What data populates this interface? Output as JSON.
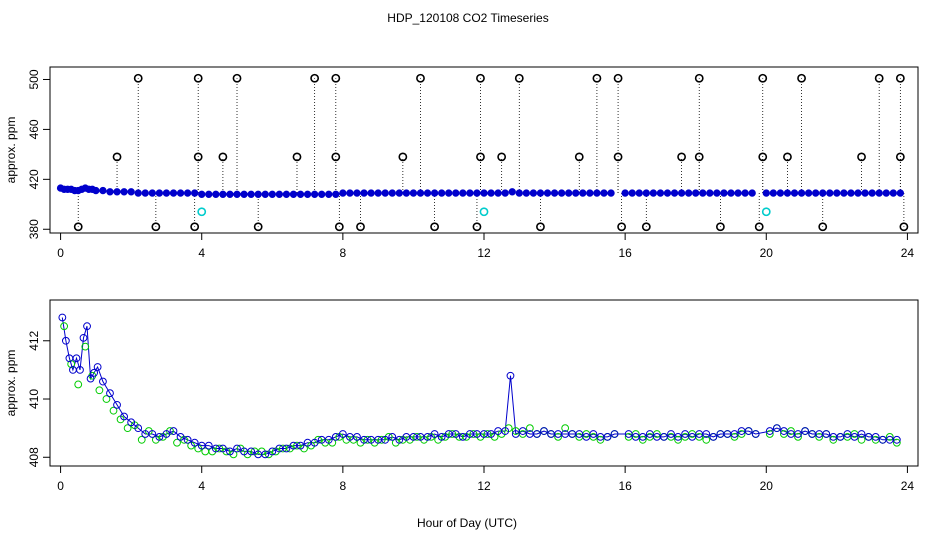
{
  "title": "HDP_120108  CO2 Timeseries",
  "xlabel": "Hour of Day (UTC)",
  "colors": {
    "primary": "#0000cc",
    "secondary": "#00cc00",
    "flag": "#00cccc",
    "outlier": "#000000"
  },
  "chart_data": [
    {
      "type": "scatter",
      "title": "HDP_120108  CO2 Timeseries",
      "xlabel": "",
      "ylabel": "approx. ppm",
      "xlim": [
        -0.3,
        24.3
      ],
      "ylim": [
        377,
        510
      ],
      "xticks": [
        0,
        4,
        8,
        12,
        16,
        20,
        24
      ],
      "yticks": [
        380,
        420,
        460,
        500
      ],
      "series": [
        {
          "marker": "circle-filled",
          "color": "#0000cc",
          "x": [
            0.0,
            0.1,
            0.2,
            0.3,
            0.4,
            0.5,
            0.6,
            0.7,
            0.8,
            0.9,
            1.0,
            1.2,
            1.4,
            1.6,
            1.8,
            2.0,
            2.2,
            2.4,
            2.6,
            2.8,
            3.0,
            3.2,
            3.4,
            3.6,
            3.8,
            4.0,
            4.2,
            4.4,
            4.6,
            4.8,
            5.0,
            5.2,
            5.4,
            5.6,
            5.8,
            6.0,
            6.2,
            6.4,
            6.6,
            6.8,
            7.0,
            7.2,
            7.4,
            7.6,
            7.8,
            8.0,
            8.2,
            8.4,
            8.6,
            8.8,
            9.0,
            9.2,
            9.4,
            9.6,
            9.8,
            10.0,
            10.2,
            10.4,
            10.6,
            10.8,
            11.0,
            11.2,
            11.4,
            11.6,
            11.8,
            12.0,
            12.2,
            12.4,
            12.6,
            12.8,
            13.0,
            13.2,
            13.4,
            13.6,
            13.8,
            14.0,
            14.2,
            14.4,
            14.6,
            14.8,
            15.0,
            15.2,
            15.4,
            15.6,
            16.0,
            16.2,
            16.4,
            16.6,
            16.8,
            17.0,
            17.2,
            17.4,
            17.6,
            17.8,
            18.0,
            18.2,
            18.4,
            18.6,
            18.8,
            19.0,
            19.2,
            19.4,
            19.6,
            20.0,
            20.2,
            20.4,
            20.6,
            20.8,
            21.0,
            21.2,
            21.4,
            21.6,
            21.8,
            22.0,
            22.2,
            22.4,
            22.6,
            22.8,
            23.0,
            23.2,
            23.4,
            23.6,
            23.8
          ],
          "y": [
            413,
            412,
            412,
            412,
            411,
            411,
            412,
            413,
            412,
            412,
            411,
            411,
            410,
            410,
            410,
            410,
            409,
            409,
            409,
            409,
            409,
            409,
            409,
            409,
            409,
            408,
            408,
            408,
            408,
            408,
            408,
            408,
            408,
            408,
            408,
            408,
            408,
            408,
            408,
            408,
            408,
            408,
            408,
            408,
            408,
            409,
            409,
            409,
            409,
            409,
            409,
            409,
            409,
            409,
            409,
            409,
            409,
            409,
            409,
            409,
            409,
            409,
            409,
            409,
            409,
            409,
            409,
            409,
            409,
            410,
            409,
            409,
            409,
            409,
            409,
            409,
            409,
            409,
            409,
            409,
            409,
            409,
            409,
            409,
            409,
            409,
            409,
            409,
            409,
            409,
            409,
            409,
            409,
            409,
            409,
            409,
            409,
            409,
            409,
            409,
            409,
            409,
            409,
            409,
            409,
            409,
            409,
            409,
            409,
            409,
            409,
            409,
            409,
            409,
            409,
            409,
            409,
            409,
            409,
            409,
            409,
            409,
            409
          ]
        },
        {
          "marker": "circle-open",
          "color": "#000000",
          "x": [
            2.2,
            3.9,
            5.0,
            7.2,
            7.8,
            10.2,
            11.9,
            13.0,
            15.2,
            15.8,
            18.1,
            19.9,
            21.0,
            23.2,
            23.8
          ],
          "y": [
            501,
            501,
            501,
            501,
            501,
            501,
            501,
            501,
            501,
            501,
            501,
            501,
            501,
            501,
            501
          ]
        },
        {
          "marker": "circle-open",
          "color": "#000000",
          "x": [
            1.6,
            3.9,
            4.6,
            6.7,
            7.8,
            9.7,
            11.9,
            12.5,
            14.7,
            15.8,
            17.6,
            18.1,
            19.9,
            20.6,
            22.7,
            23.8
          ],
          "y": [
            438,
            438,
            438,
            438,
            438,
            438,
            438,
            438,
            438,
            438,
            438,
            438,
            438,
            438,
            438,
            438
          ]
        },
        {
          "marker": "circle-open",
          "color": "#000000",
          "x": [
            0.5,
            2.7,
            3.8,
            5.6,
            7.9,
            8.5,
            10.6,
            11.8,
            13.6,
            15.9,
            16.6,
            18.7,
            19.8,
            21.6,
            23.9
          ],
          "y": [
            382,
            382,
            382,
            382,
            382,
            382,
            382,
            382,
            382,
            382,
            382,
            382,
            382,
            382,
            382
          ]
        },
        {
          "marker": "circle-open",
          "color": "#00cccc",
          "x": [
            4.0,
            12.0,
            20.0
          ],
          "y": [
            394,
            394,
            394
          ]
        }
      ]
    },
    {
      "type": "scatter",
      "xlabel": "Hour of Day (UTC)",
      "ylabel": "approx. ppm",
      "xlim": [
        -0.3,
        24.3
      ],
      "ylim": [
        407.7,
        413.4
      ],
      "xticks": [
        0,
        4,
        8,
        12,
        16,
        20,
        24
      ],
      "yticks": [
        408,
        410,
        412
      ],
      "series": [
        {
          "marker": "circle-open",
          "color": "#0000cc",
          "x": [
            0.05,
            0.15,
            0.25,
            0.35,
            0.45,
            0.55,
            0.65,
            0.75,
            0.85,
            0.95,
            1.05,
            1.2,
            1.4,
            1.6,
            1.8,
            2.0,
            2.2,
            2.4,
            2.6,
            2.8,
            3.0,
            3.2,
            3.4,
            3.6,
            3.8,
            4.0,
            4.2,
            4.4,
            4.6,
            4.8,
            5.0,
            5.2,
            5.4,
            5.6,
            5.8,
            6.0,
            6.2,
            6.4,
            6.6,
            6.8,
            7.0,
            7.2,
            7.4,
            7.6,
            7.8,
            8.0,
            8.2,
            8.4,
            8.6,
            8.8,
            9.0,
            9.2,
            9.4,
            9.6,
            9.8,
            10.0,
            10.2,
            10.4,
            10.6,
            10.8,
            11.0,
            11.2,
            11.4,
            11.6,
            11.8,
            12.0,
            12.2,
            12.4,
            12.6,
            12.75,
            12.9,
            13.1,
            13.3,
            13.5,
            13.7,
            13.9,
            14.1,
            14.3,
            14.5,
            14.7,
            14.9,
            15.1,
            15.3,
            15.5,
            15.7,
            16.1,
            16.3,
            16.5,
            16.7,
            16.9,
            17.1,
            17.3,
            17.5,
            17.7,
            17.9,
            18.1,
            18.3,
            18.5,
            18.7,
            18.9,
            19.1,
            19.3,
            19.5,
            19.7,
            20.1,
            20.3,
            20.5,
            20.7,
            20.9,
            21.1,
            21.3,
            21.5,
            21.7,
            21.9,
            22.1,
            22.3,
            22.5,
            22.7,
            22.9,
            23.1,
            23.3,
            23.5,
            23.7
          ],
          "y": [
            412.8,
            412.0,
            411.4,
            411.0,
            411.4,
            411.0,
            412.1,
            412.5,
            410.7,
            410.9,
            411.1,
            410.6,
            410.2,
            409.8,
            409.4,
            409.2,
            409.0,
            408.8,
            408.8,
            408.7,
            408.8,
            408.9,
            408.7,
            408.6,
            408.5,
            408.4,
            408.4,
            408.3,
            408.3,
            408.2,
            408.3,
            408.2,
            408.2,
            408.1,
            408.1,
            408.2,
            408.3,
            408.3,
            408.4,
            408.4,
            408.5,
            408.5,
            408.6,
            408.6,
            408.7,
            408.8,
            408.7,
            408.7,
            408.6,
            408.6,
            408.6,
            408.6,
            408.7,
            408.6,
            408.7,
            408.7,
            408.7,
            408.7,
            408.8,
            408.7,
            408.8,
            408.8,
            408.7,
            408.8,
            408.8,
            408.8,
            408.8,
            408.9,
            408.9,
            410.8,
            408.8,
            408.9,
            408.8,
            408.8,
            408.9,
            408.8,
            408.8,
            408.8,
            408.8,
            408.8,
            408.7,
            408.8,
            408.7,
            408.7,
            408.8,
            408.8,
            408.7,
            408.7,
            408.8,
            408.7,
            408.7,
            408.8,
            408.7,
            408.8,
            408.7,
            408.8,
            408.8,
            408.7,
            408.8,
            408.8,
            408.8,
            408.9,
            408.9,
            408.8,
            408.9,
            409.0,
            408.9,
            408.8,
            408.8,
            408.9,
            408.8,
            408.8,
            408.8,
            408.7,
            408.7,
            408.8,
            408.7,
            408.8,
            408.7,
            408.7,
            408.6,
            408.6,
            408.6
          ]
        },
        {
          "marker": "circle-open",
          "color": "#00cc00",
          "x": [
            0.1,
            0.3,
            0.5,
            0.7,
            0.9,
            1.1,
            1.3,
            1.5,
            1.7,
            1.9,
            2.1,
            2.3,
            2.5,
            2.7,
            2.9,
            3.1,
            3.3,
            3.5,
            3.7,
            3.9,
            4.1,
            4.3,
            4.5,
            4.7,
            4.9,
            5.1,
            5.3,
            5.5,
            5.7,
            5.9,
            6.1,
            6.3,
            6.5,
            6.7,
            6.9,
            7.1,
            7.3,
            7.5,
            7.7,
            7.9,
            8.1,
            8.3,
            8.5,
            8.7,
            8.9,
            9.1,
            9.3,
            9.5,
            9.7,
            9.9,
            10.1,
            10.3,
            10.5,
            10.7,
            10.9,
            11.1,
            11.3,
            11.5,
            11.7,
            11.9,
            12.1,
            12.3,
            12.5,
            12.7,
            12.9,
            13.1,
            13.3,
            13.5,
            13.7,
            13.9,
            14.1,
            14.3,
            14.5,
            14.7,
            14.9,
            15.1,
            15.3,
            15.5,
            15.7,
            16.1,
            16.3,
            16.5,
            16.7,
            16.9,
            17.1,
            17.3,
            17.5,
            17.7,
            17.9,
            18.1,
            18.3,
            18.5,
            18.7,
            18.9,
            19.1,
            19.3,
            19.5,
            19.7,
            20.1,
            20.3,
            20.5,
            20.7,
            20.9,
            21.1,
            21.3,
            21.5,
            21.7,
            21.9,
            22.1,
            22.3,
            22.5,
            22.7,
            22.9,
            23.1,
            23.3,
            23.5,
            23.7
          ],
          "y": [
            412.5,
            411.2,
            410.5,
            411.8,
            410.8,
            410.3,
            410.0,
            409.6,
            409.3,
            409.0,
            409.1,
            408.6,
            408.9,
            408.6,
            408.7,
            408.9,
            408.5,
            408.6,
            408.4,
            408.3,
            408.2,
            408.2,
            408.3,
            408.2,
            408.1,
            408.3,
            408.1,
            408.2,
            408.2,
            408.1,
            408.2,
            408.3,
            408.3,
            408.4,
            408.3,
            408.4,
            408.6,
            408.5,
            408.5,
            408.7,
            408.6,
            408.6,
            408.5,
            408.6,
            408.5,
            408.6,
            408.7,
            408.5,
            408.6,
            408.6,
            408.7,
            408.6,
            408.7,
            408.6,
            408.7,
            408.8,
            408.7,
            408.7,
            408.8,
            408.7,
            408.8,
            408.7,
            408.8,
            409.0,
            408.9,
            408.8,
            409.0,
            408.8,
            408.9,
            408.8,
            408.7,
            409.0,
            408.8,
            408.7,
            408.8,
            408.7,
            408.6,
            408.7,
            408.8,
            408.7,
            408.8,
            408.6,
            408.7,
            408.8,
            408.7,
            408.7,
            408.6,
            408.7,
            408.8,
            408.7,
            408.6,
            408.7,
            408.8,
            408.8,
            408.7,
            408.8,
            408.9,
            408.8,
            408.8,
            409.0,
            408.8,
            408.9,
            408.7,
            408.9,
            408.8,
            408.7,
            408.8,
            408.6,
            408.7,
            408.7,
            408.8,
            408.6,
            408.7,
            408.6,
            408.6,
            408.7,
            408.5
          ]
        }
      ]
    }
  ]
}
